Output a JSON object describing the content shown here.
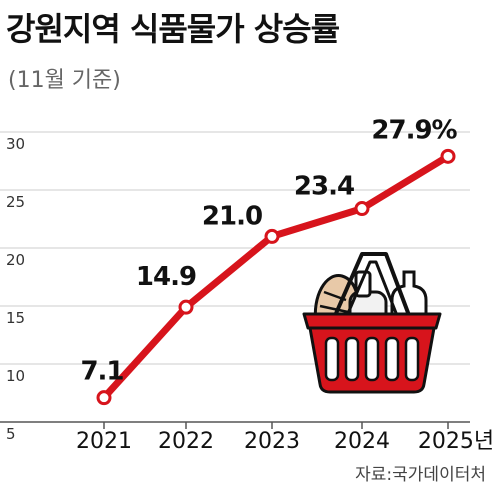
{
  "title": "강원지역 식품물가 상승률",
  "subtitle": "(11월 기준)",
  "source": "자료:국가데이터처",
  "colors": {
    "line": "#d7141c",
    "axis": "#888888",
    "grid": "#cccccc",
    "basket": "#d7141c"
  },
  "chart_data": {
    "type": "line",
    "title": "강원지역 식품물가 상승률",
    "subtitle": "(11월 기준)",
    "categories": [
      "2021",
      "2022",
      "2023",
      "2024",
      "2025년"
    ],
    "values": [
      7.1,
      14.9,
      21.0,
      23.4,
      27.9
    ],
    "data_labels": [
      "7.1",
      "14.9",
      "21.0",
      "23.4",
      "27.9%"
    ],
    "y_ticks": [
      "30",
      "25",
      "20",
      "15",
      "10",
      "5"
    ],
    "ylim": [
      5,
      30
    ],
    "grid": true,
    "legend": "none"
  }
}
